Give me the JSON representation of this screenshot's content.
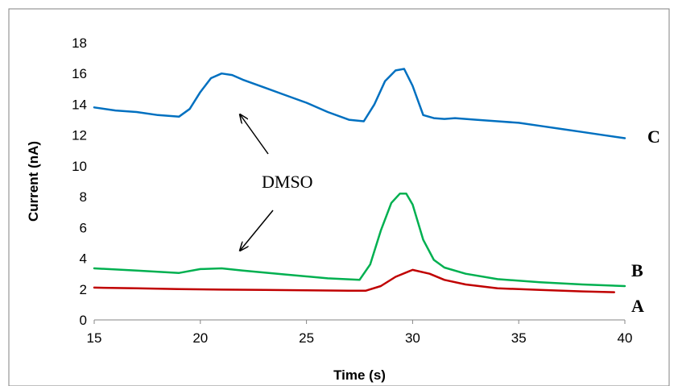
{
  "chart_data": {
    "type": "line",
    "title": "",
    "xlabel": "Time (s)",
    "ylabel": "Current (nA)",
    "xlim": [
      15,
      40
    ],
    "ylim": [
      0,
      18
    ],
    "x_ticks": [
      15,
      20,
      25,
      30,
      35,
      40
    ],
    "y_ticks": [
      0,
      2,
      4,
      6,
      8,
      10,
      12,
      14,
      16,
      18
    ],
    "grid": false,
    "series": [
      {
        "name": "A",
        "color": "#c00000",
        "x": [
          15,
          17,
          19,
          21,
          23,
          25,
          27,
          27.8,
          28.5,
          29.2,
          30,
          30.8,
          31.5,
          32.5,
          34,
          36,
          38,
          39.5
        ],
        "y": [
          2.1,
          2.05,
          2.0,
          1.97,
          1.95,
          1.92,
          1.9,
          1.9,
          2.2,
          2.8,
          3.25,
          3.0,
          2.6,
          2.3,
          2.05,
          1.95,
          1.85,
          1.8
        ]
      },
      {
        "name": "B",
        "color": "#00b050",
        "x": [
          15,
          17,
          19,
          20,
          21,
          22,
          24,
          26,
          27.5,
          28,
          28.5,
          29,
          29.4,
          29.7,
          30,
          30.5,
          31,
          31.5,
          32.5,
          34,
          36,
          38,
          40
        ],
        "y": [
          3.35,
          3.2,
          3.05,
          3.3,
          3.35,
          3.2,
          2.95,
          2.7,
          2.6,
          3.6,
          5.8,
          7.6,
          8.2,
          8.2,
          7.5,
          5.2,
          3.9,
          3.4,
          3.0,
          2.65,
          2.45,
          2.3,
          2.2
        ]
      },
      {
        "name": "C",
        "color": "#0070c0",
        "x": [
          15,
          16,
          17,
          18,
          19,
          19.5,
          20,
          20.5,
          21,
          21.5,
          22,
          23,
          24,
          25,
          26,
          27,
          27.7,
          28.2,
          28.7,
          29.2,
          29.6,
          30,
          30.5,
          31,
          31.5,
          32,
          33,
          34,
          35,
          36,
          37,
          38,
          39,
          40
        ],
        "y": [
          13.8,
          13.6,
          13.5,
          13.3,
          13.2,
          13.7,
          14.8,
          15.7,
          16.0,
          15.9,
          15.6,
          15.1,
          14.6,
          14.1,
          13.5,
          13.0,
          12.9,
          14.0,
          15.5,
          16.2,
          16.3,
          15.2,
          13.3,
          13.1,
          13.05,
          13.1,
          13.0,
          12.9,
          12.8,
          12.6,
          12.4,
          12.2,
          12.0,
          11.8
        ]
      }
    ],
    "annotations": [
      {
        "text": "DMSO"
      }
    ]
  }
}
